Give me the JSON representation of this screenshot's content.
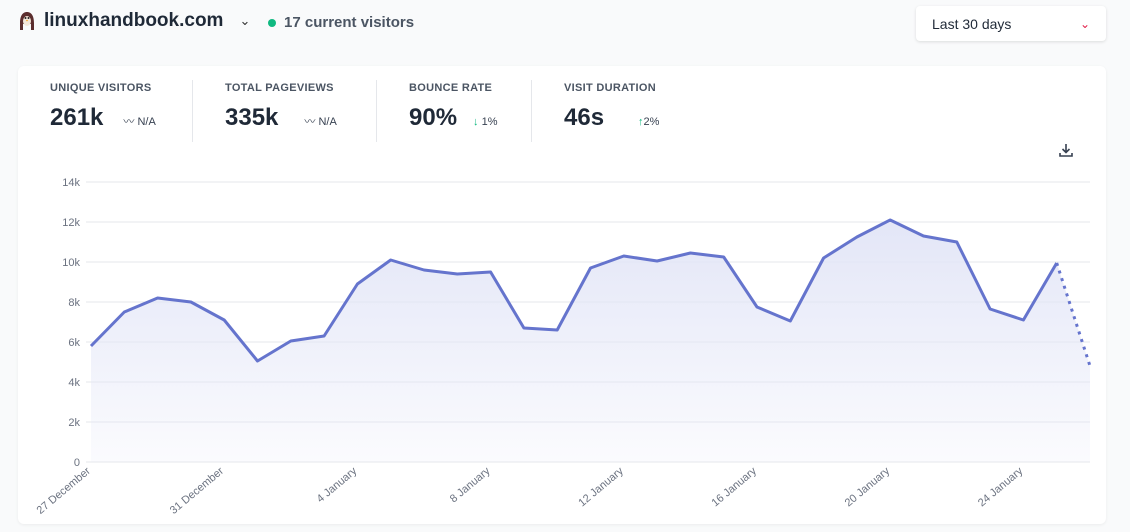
{
  "header": {
    "site": "linuxhandbook.com",
    "current_visitors": "17 current visitors",
    "date_range": "Last 30 days"
  },
  "stats": [
    {
      "label": "UNIQUE VISITORS",
      "value": "261k",
      "change": "N/A",
      "change_icon": "wave-icon"
    },
    {
      "label": "TOTAL PAGEVIEWS",
      "value": "335k",
      "change": "N/A",
      "change_icon": "wave-icon"
    },
    {
      "label": "BOUNCE RATE",
      "value": "90%",
      "change": "1%",
      "change_icon": "arrow-down-icon"
    },
    {
      "label": "VISIT DURATION",
      "value": "46s",
      "change": "2%",
      "change_icon": "arrow-up-icon"
    }
  ],
  "colors": {
    "line": "#6574cd",
    "fill": "#e8eaf8",
    "live_dot": "#10b981",
    "caret": "#e11d48"
  },
  "chart_data": {
    "type": "area",
    "ylim": [
      0,
      14000
    ],
    "y_ticks": [
      "0",
      "2k",
      "4k",
      "6k",
      "8k",
      "10k",
      "12k",
      "14k"
    ],
    "x_tick_labels": [
      {
        "index": 0,
        "label": "27 December"
      },
      {
        "index": 4,
        "label": "31 December"
      },
      {
        "index": 8,
        "label": "4 January"
      },
      {
        "index": 12,
        "label": "8 January"
      },
      {
        "index": 16,
        "label": "12 January"
      },
      {
        "index": 20,
        "label": "16 January"
      },
      {
        "index": 24,
        "label": "20 January"
      },
      {
        "index": 28,
        "label": "24 January"
      }
    ],
    "values": [
      5800,
      7500,
      8200,
      8000,
      7100,
      5050,
      6050,
      6300,
      8900,
      10100,
      9600,
      9400,
      9500,
      6700,
      6600,
      9700,
      10300,
      10050,
      10450,
      10250,
      7750,
      7050,
      10200,
      11250,
      12100,
      11300,
      11000,
      7650,
      7100,
      9950,
      4800
    ],
    "last_point_incomplete": true,
    "grid": true
  }
}
